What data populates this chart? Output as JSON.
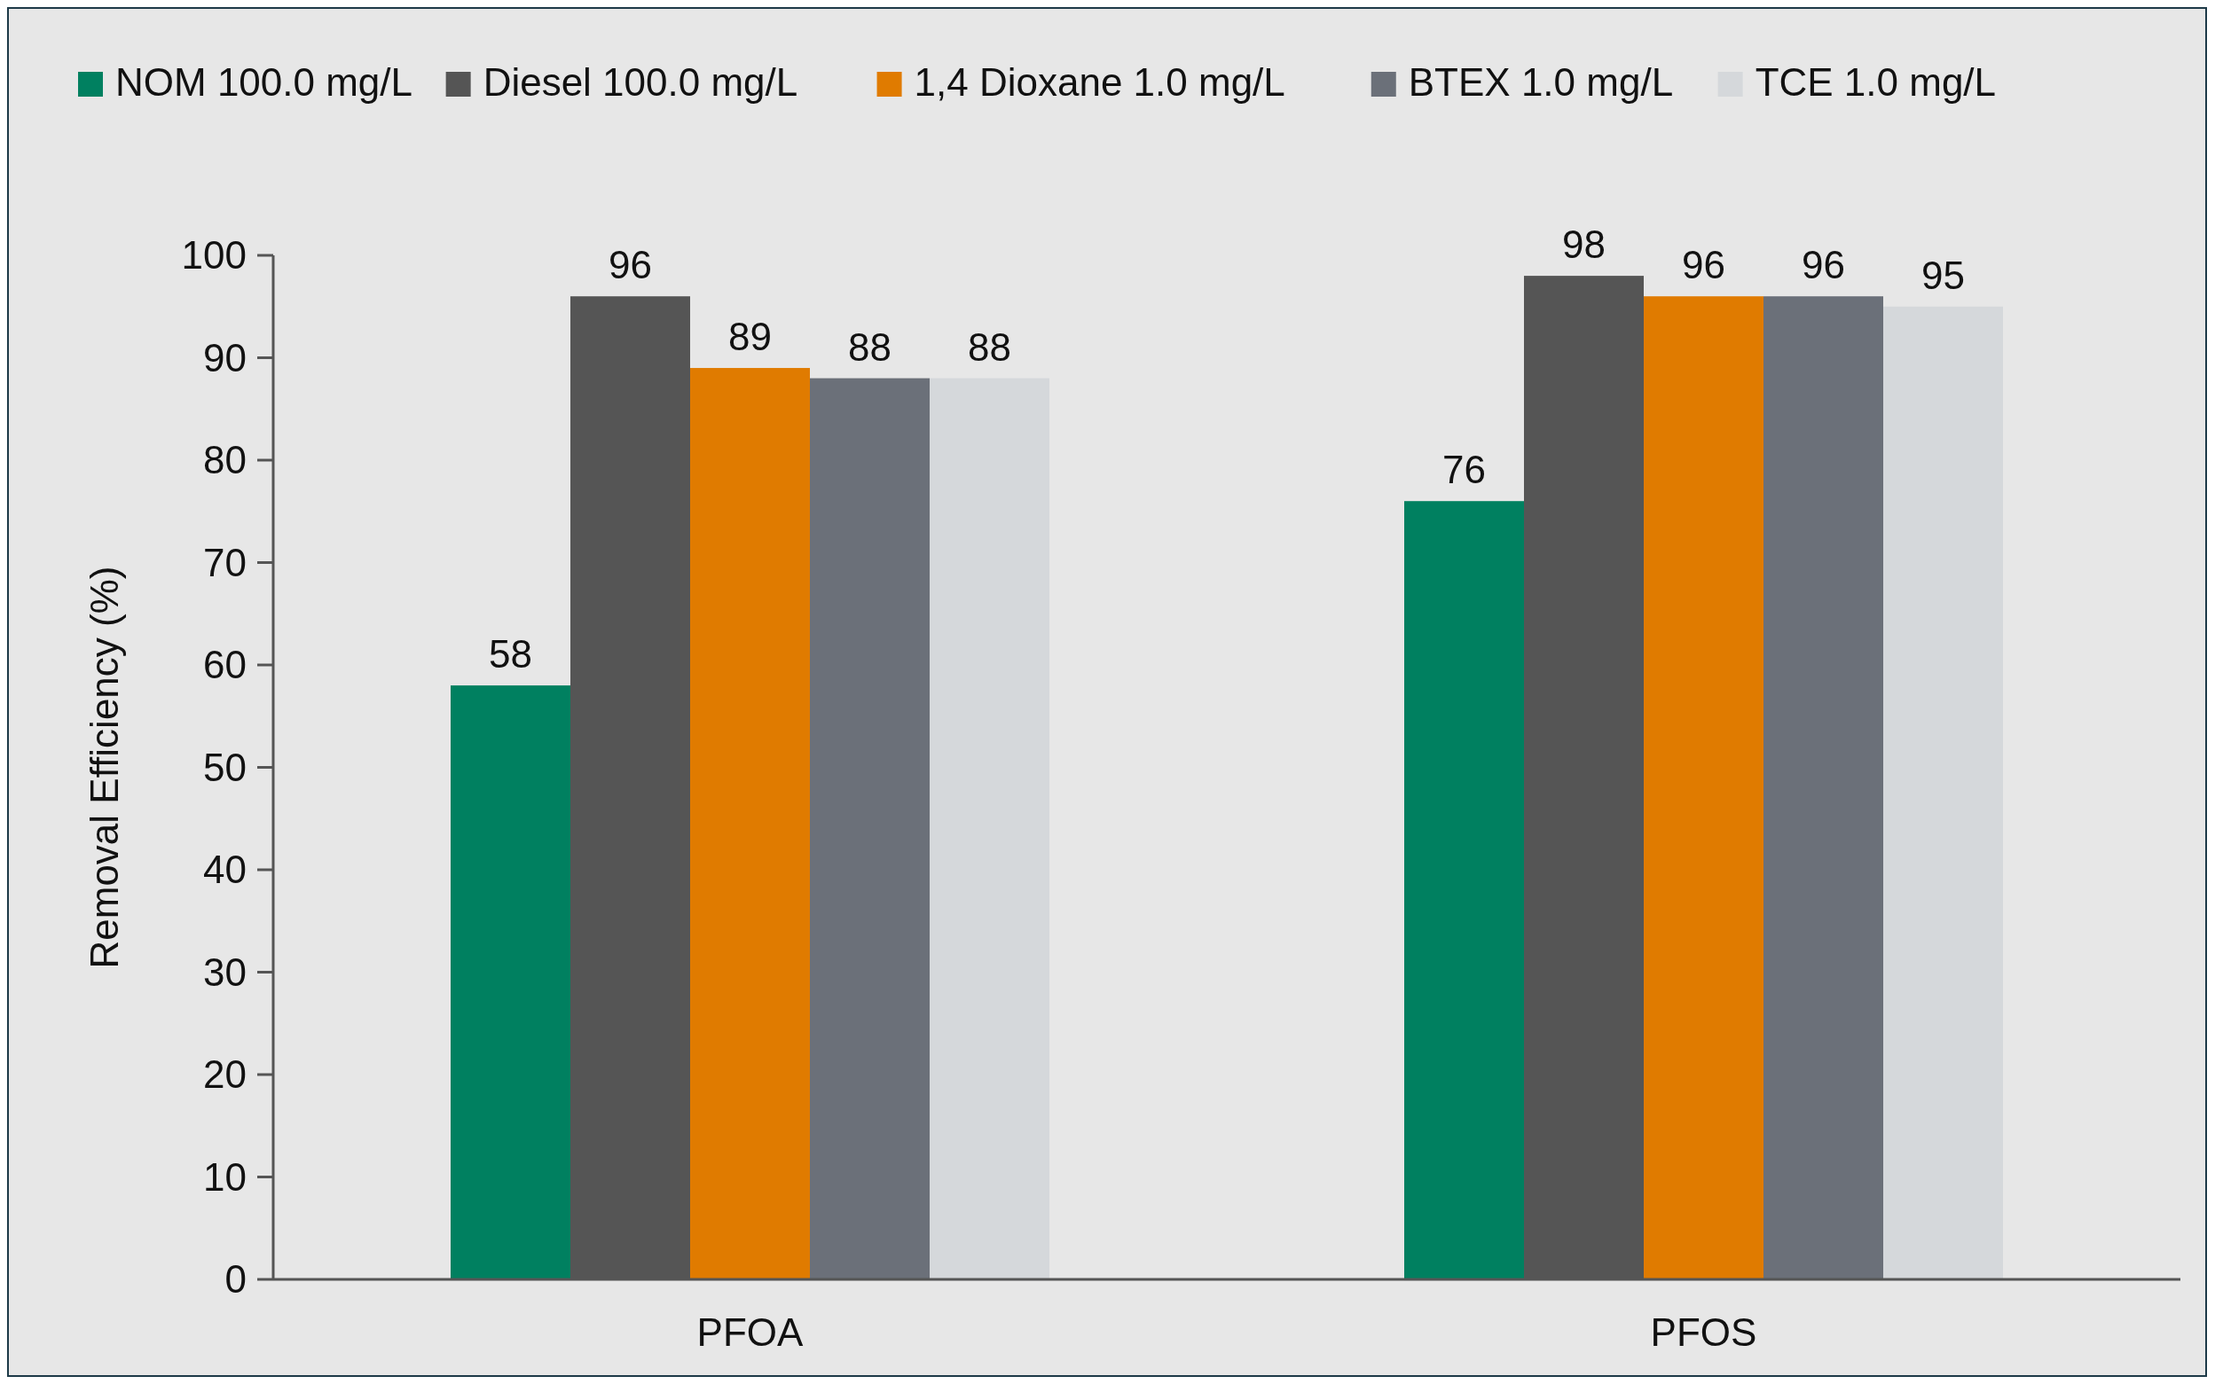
{
  "chart_data": {
    "type": "bar",
    "ylabel": "Removal Efficiency (%)",
    "categories": [
      "PFOA",
      "PFOS"
    ],
    "series": [
      {
        "name": "NOM 100.0 mg/L",
        "color": "#008060",
        "values": [
          58,
          76
        ]
      },
      {
        "name": "Diesel 100.0 mg/L",
        "color": "#555555",
        "values": [
          96,
          98
        ]
      },
      {
        "name": "1,4 Dioxane 1.0 mg/L",
        "color": "#e07b00",
        "values": [
          89,
          96
        ]
      },
      {
        "name": "BTEX 1.0 mg/L",
        "color": "#6b7079",
        "values": [
          88,
          96
        ]
      },
      {
        "name": "TCE 1.0 mg/L",
        "color": "#d5d8db",
        "values": [
          88,
          95
        ]
      }
    ],
    "ylim": [
      0,
      100
    ],
    "yticks": [
      0,
      10,
      20,
      30,
      40,
      50,
      60,
      70,
      80,
      90,
      100
    ],
    "data_labels": true,
    "legend": "top",
    "grid": false
  }
}
